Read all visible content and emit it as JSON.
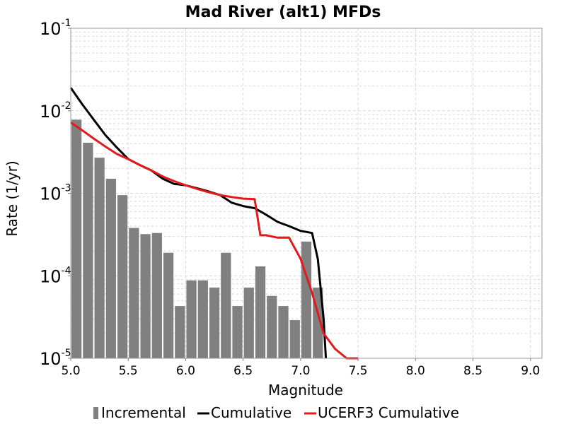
{
  "chart_data": {
    "type": "bar",
    "title": "Mad River (alt1) MFDs",
    "xlabel": "Magnitude",
    "ylabel": "Rate (1/yr)",
    "xlim": [
      5.0,
      9.1
    ],
    "ylim": [
      1e-05,
      0.1
    ],
    "y_scale": "log",
    "grid": true,
    "legend_position": "bottom",
    "x_ticks": [
      "5.0",
      "5.5",
      "6.0",
      "6.5",
      "7.0",
      "7.5",
      "8.0",
      "8.5",
      "9.0"
    ],
    "y_ticks": [
      {
        "base": "10",
        "exp": "-1",
        "value": 0.1
      },
      {
        "base": "10",
        "exp": "-2",
        "value": 0.01
      },
      {
        "base": "10",
        "exp": "-3",
        "value": 0.001
      },
      {
        "base": "10",
        "exp": "-4",
        "value": 0.0001
      },
      {
        "base": "10",
        "exp": "-5",
        "value": 1e-05
      }
    ],
    "legend": {
      "incremental": "Incremental",
      "cumulative": "Cumulative",
      "ucerf3": "UCERF3 Cumulative"
    },
    "colors": {
      "incremental": "#808080",
      "cumulative": "#000000",
      "ucerf3": "#e31a1c",
      "grid": "#d9d9d9",
      "frame": "#999999"
    },
    "incremental": {
      "x": [
        5.05,
        5.15,
        5.25,
        5.35,
        5.45,
        5.55,
        5.65,
        5.75,
        5.85,
        5.95,
        6.05,
        6.15,
        6.25,
        6.35,
        6.45,
        6.55,
        6.65,
        6.75,
        6.85,
        6.95,
        7.05,
        7.15,
        7.25
      ],
      "values": [
        0.0078,
        0.0041,
        0.0027,
        0.0015,
        0.00095,
        0.00038,
        0.00032,
        0.00033,
        0.00019,
        4.3e-05,
        8.8e-05,
        8.8e-05,
        7.2e-05,
        0.00019,
        4.3e-05,
        7.2e-05,
        0.00013,
        5.7e-05,
        4.3e-05,
        2.9e-05,
        0.00026,
        7.2e-05,
        1e-05
      ]
    },
    "series": [
      {
        "name": "Cumulative",
        "x": [
          5.0,
          5.1,
          5.2,
          5.3,
          5.4,
          5.5,
          5.6,
          5.7,
          5.8,
          5.9,
          6.0,
          6.1,
          6.2,
          6.3,
          6.4,
          6.5,
          6.6,
          6.7,
          6.8,
          6.9,
          7.0,
          7.1,
          7.15,
          7.2,
          7.22
        ],
        "values": [
          0.019,
          0.012,
          0.0078,
          0.0051,
          0.0036,
          0.0026,
          0.0022,
          0.0019,
          0.0015,
          0.0013,
          0.00125,
          0.00115,
          0.00105,
          0.00095,
          0.00077,
          0.0007,
          0.00066,
          0.00055,
          0.00045,
          0.0004,
          0.00035,
          0.00033,
          0.00016,
          3e-05,
          1e-05
        ]
      },
      {
        "name": "UCERF3 Cumulative",
        "x": [
          5.0,
          5.1,
          5.2,
          5.3,
          5.4,
          5.5,
          5.6,
          5.7,
          5.8,
          5.9,
          6.0,
          6.1,
          6.2,
          6.3,
          6.4,
          6.5,
          6.6,
          6.65,
          6.7,
          6.8,
          6.9,
          7.0,
          7.1,
          7.2,
          7.3,
          7.4,
          7.5
        ],
        "values": [
          0.0072,
          0.0058,
          0.0046,
          0.0037,
          0.003,
          0.0026,
          0.0022,
          0.0019,
          0.0016,
          0.0014,
          0.00125,
          0.00113,
          0.00103,
          0.00095,
          0.0009,
          0.00086,
          0.00085,
          0.00031,
          0.00031,
          0.00029,
          0.00029,
          0.00016,
          6.2e-05,
          2e-05,
          1.3e-05,
          1e-05,
          1e-05
        ]
      }
    ]
  }
}
